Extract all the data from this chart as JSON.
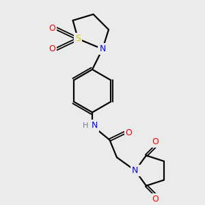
{
  "bg_color": "#ebebeb",
  "bond_color": "#000000",
  "bond_width": 1.6,
  "atom_colors": {
    "N": "#0000ff",
    "O": "#ff0000",
    "S": "#cccc00",
    "C": "#000000",
    "H": "#708090"
  },
  "figsize": [
    3.0,
    3.0
  ],
  "dpi": 100,
  "xlim": [
    0,
    10
  ],
  "ylim": [
    0,
    10
  ]
}
